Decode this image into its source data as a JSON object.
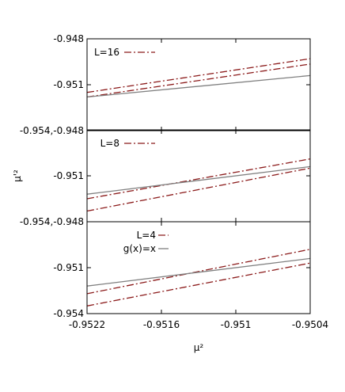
{
  "chart_data": {
    "type": "line",
    "xlabel": "µ²",
    "ylabel": "µ'²",
    "xlim": [
      -0.9522,
      -0.9504
    ],
    "x_ticks": [
      -0.9522,
      -0.9516,
      -0.951,
      -0.9504
    ],
    "x_tick_labels": [
      "-0.9522",
      "-0.9516",
      "-0.951",
      "-0.9504"
    ],
    "grid": false,
    "panels": [
      {
        "ylim": [
          -0.954,
          -0.948
        ],
        "y_tick_labels": [
          {
            "value": -0.948,
            "label": "-0.948"
          },
          {
            "value": -0.951,
            "label": "-0.951"
          },
          {
            "value": -0.954,
            "label": "-0.954,-0.948"
          }
        ],
        "legend": [
          {
            "text": "L=16",
            "style": "dashdot",
            "color": "#8b1a1a"
          }
        ],
        "series": [
          {
            "name": "L=16",
            "x": [
              -0.9522,
              -0.9504
            ],
            "y": [
              -0.9515,
              -0.9493
            ],
            "style": "dashdot",
            "color": "#8b1a1a"
          },
          {
            "x": [
              -0.9522,
              -0.9504
            ],
            "y": [
              -0.9518,
              -0.94965
            ],
            "style": "dashdot",
            "color": "#8b1a1a"
          },
          {
            "x": [
              -0.9522,
              -0.9504
            ],
            "y": [
              -0.9518,
              -0.9504
            ],
            "style": "solid",
            "color": "#808080"
          }
        ]
      },
      {
        "ylim": [
          -0.954,
          -0.948
        ],
        "y_tick_labels": [
          {
            "value": -0.951,
            "label": "-0.951"
          },
          {
            "value": -0.954,
            "label": "-0.954,-0.948"
          }
        ],
        "legend": [
          {
            "text": "L=8",
            "style": "dashdot",
            "color": "#8b1a1a"
          }
        ],
        "series": [
          {
            "name": "L=8",
            "x": [
              -0.9522,
              -0.9504
            ],
            "y": [
              -0.9525,
              -0.9499
            ],
            "style": "dashdot",
            "color": "#8b1a1a"
          },
          {
            "x": [
              -0.9522,
              -0.9504
            ],
            "y": [
              -0.9533,
              -0.9505
            ],
            "style": "dashdot",
            "color": "#8b1a1a"
          },
          {
            "x": [
              -0.9522,
              -0.9504
            ],
            "y": [
              -0.9522,
              -0.9504
            ],
            "style": "solid",
            "color": "#808080"
          }
        ]
      },
      {
        "ylim": [
          -0.954,
          -0.948
        ],
        "y_tick_labels": [
          {
            "value": -0.951,
            "label": "-0.951"
          },
          {
            "value": -0.954,
            "label": "-0.954"
          }
        ],
        "legend": [
          {
            "text": "L=4",
            "style": "dashdot",
            "color": "#8b1a1a"
          },
          {
            "text": "g(x)=x",
            "style": "solid",
            "color": "#808080"
          }
        ],
        "series": [
          {
            "name": "L=4",
            "x": [
              -0.9522,
              -0.9504
            ],
            "y": [
              -0.9527,
              -0.9498
            ],
            "style": "dashdot",
            "color": "#8b1a1a"
          },
          {
            "x": [
              -0.9522,
              -0.9504
            ],
            "y": [
              -0.9535,
              -0.9507
            ],
            "style": "dashdot",
            "color": "#8b1a1a"
          },
          {
            "name": "g(x)=x",
            "x": [
              -0.9522,
              -0.9504
            ],
            "y": [
              -0.9522,
              -0.9504
            ],
            "style": "solid",
            "color": "#808080"
          }
        ]
      }
    ]
  }
}
